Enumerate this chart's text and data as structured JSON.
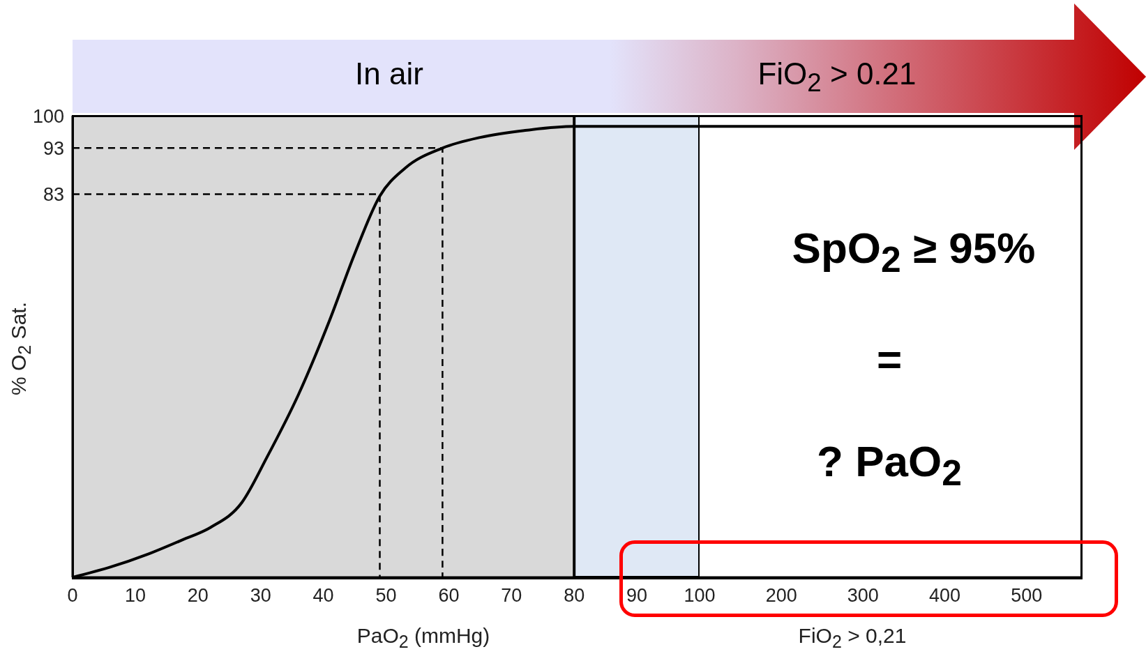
{
  "chart_data": [
    {
      "type": "line",
      "xlabel": "PaO$_{2}$ (mmHg)",
      "ylabel": "% O$_{2}$ Sat.",
      "xlim": [
        0,
        100
      ],
      "xticks": [
        0,
        10,
        20,
        30,
        40,
        50,
        60,
        70,
        80,
        90,
        100
      ],
      "ylim": [
        0,
        100
      ],
      "yticks": [
        83,
        93,
        100
      ],
      "marker": "none",
      "line_style": "solid",
      "bands": [
        {
          "axis": "x",
          "from": 0,
          "to": 80,
          "color": "#d9d9d9"
        },
        {
          "axis": "x",
          "from": 80,
          "to": 100,
          "color": "#dfe8f5"
        }
      ],
      "annotations": [
        "In air"
      ],
      "series": [
        {
          "color": "#000000",
          "x": [
            0,
            6,
            12,
            17.5,
            22,
            27,
            31,
            36,
            41,
            45,
            49,
            53,
            59,
            65,
            72,
            80,
            100
          ],
          "values": [
            0,
            2.2,
            5,
            8.1,
            10.8,
            16.2,
            26,
            39.5,
            55.7,
            70.1,
            82.6,
            88.6,
            93,
            95.3,
            96.8,
            97.7,
            97.7
          ]
        },
        {
          "color": "#000000",
          "line_style": "dashed",
          "x": [
            0,
            49,
            49
          ],
          "values": [
            83,
            83,
            0
          ]
        },
        {
          "color": "#000000",
          "line_style": "dashed",
          "x": [
            0,
            59,
            59
          ],
          "values": [
            93,
            93,
            0
          ]
        }
      ]
    },
    {
      "type": "line",
      "xlabel": "FiO$_{2}$ > 0,21",
      "xlim": [
        100,
        566
      ],
      "xticks": [
        200,
        300,
        400,
        500
      ],
      "ylim": [
        0,
        100
      ],
      "tick_labels": "x",
      "marker": "none",
      "line_style": "solid",
      "annotations": [
        "FiO$_{2}$ > 0.21",
        "SpO$_{2}$ ≥ 95%",
        "=",
        "? PaO$_{2}$"
      ],
      "series": [
        {
          "color": "#000000",
          "x": [
            100,
            566
          ],
          "values": [
            97.7,
            97.7
          ]
        }
      ]
    }
  ]
}
